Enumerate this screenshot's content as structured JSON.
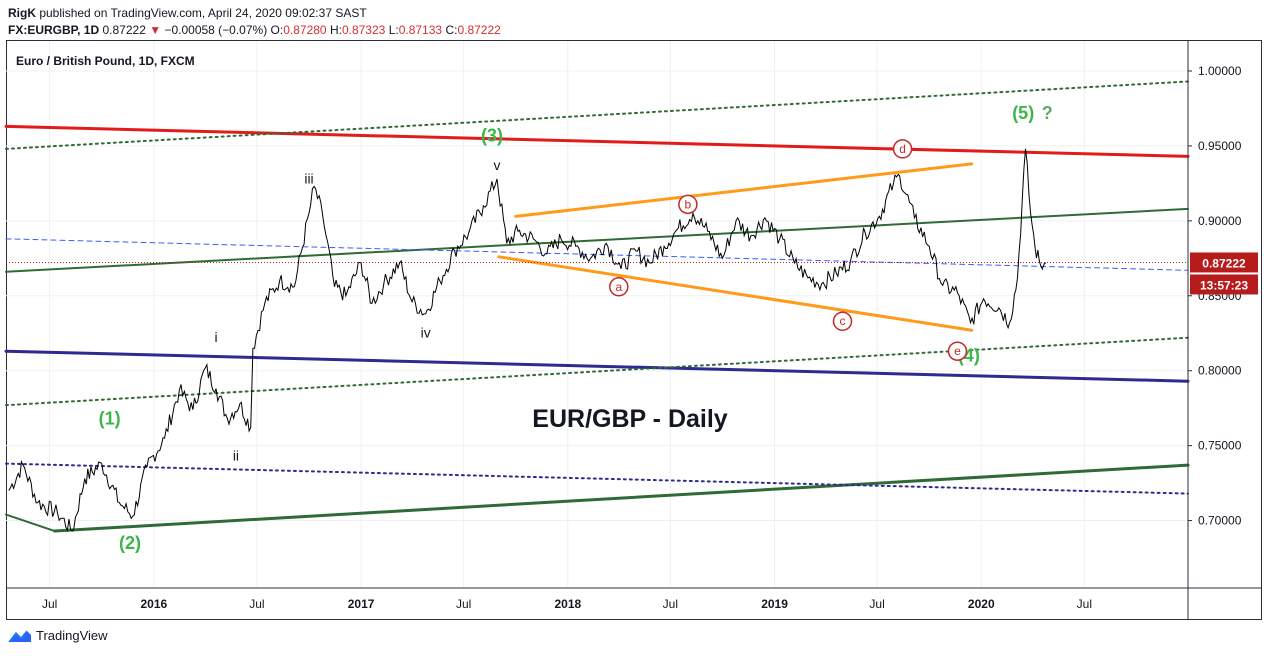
{
  "header": {
    "publisher": "RigK",
    "published_text": " published on TradingView.com, April 24, 2020 09:02:37 SAST",
    "symbol": "FX:EURGBP, 1D",
    "price": "0.87222",
    "change_arrow": "▼",
    "change": "−0.00058 (−0.07%)",
    "o_label": "O:",
    "o_value": "0.87280",
    "h_label": "H:",
    "h_value": "0.87323",
    "l_label": "L:",
    "l_value": "0.87133",
    "c_label": "C:",
    "c_value": "0.87222"
  },
  "footer": {
    "brand": "TradingView"
  },
  "colors": {
    "price_line": "#000000",
    "red_channel": "#e31b1b",
    "orange_triangle": "#ff9a1a",
    "navy_line": "#2e2a8f",
    "green_line": "#2e6b36",
    "wave_green": "#3cb54a",
    "wave_red": "#c62828",
    "price_label_bg": "#b71c1c"
  },
  "chart_data": {
    "type": "line",
    "title": "Euro / British Pound, 1D, FXCM",
    "annotation_title": "EUR/GBP - Daily",
    "ylim": [
      0.655,
      1.02
    ],
    "y_ticks": [
      "0.70000",
      "0.75000",
      "0.80000",
      "0.85000",
      "0.90000",
      "0.95000",
      "1.00000"
    ],
    "y_tick_values": [
      0.7,
      0.75,
      0.8,
      0.85,
      0.9,
      0.95,
      1.0
    ],
    "x_ticks": [
      "Jul",
      "2016",
      "Jul",
      "2017",
      "Jul",
      "2018",
      "Jul",
      "2019",
      "Jul",
      "2020",
      "Jul"
    ],
    "x_tick_dates": [
      "2015-07-01",
      "2016-01-01",
      "2016-07-01",
      "2017-01-01",
      "2017-07-01",
      "2018-01-01",
      "2018-07-01",
      "2019-01-01",
      "2019-07-01",
      "2020-01-01",
      "2020-07-01"
    ],
    "x_range": [
      "2015-04-15",
      "2020-12-31"
    ],
    "current_price_label": "0.87222",
    "countdown_label": "13:57:23",
    "series": [
      {
        "name": "EURGBP",
        "x": [
          "2015-04-20",
          "2015-05-15",
          "2015-06-10",
          "2015-07-15",
          "2015-08-10",
          "2015-09-01",
          "2015-10-01",
          "2015-11-01",
          "2015-11-25",
          "2015-12-20",
          "2016-01-20",
          "2016-02-15",
          "2016-03-10",
          "2016-04-01",
          "2016-04-20",
          "2016-05-10",
          "2016-06-01",
          "2016-06-20",
          "2016-06-24",
          "2016-07-15",
          "2016-08-10",
          "2016-09-05",
          "2016-10-01",
          "2016-10-10",
          "2016-10-25",
          "2016-11-15",
          "2016-12-05",
          "2017-01-01",
          "2017-01-20",
          "2017-02-10",
          "2017-03-10",
          "2017-04-01",
          "2017-04-25",
          "2017-05-20",
          "2017-06-15",
          "2017-07-10",
          "2017-08-05",
          "2017-08-29",
          "2017-09-15",
          "2017-10-05",
          "2017-11-01",
          "2017-11-25",
          "2017-12-20",
          "2018-01-15",
          "2018-02-10",
          "2018-03-10",
          "2018-04-05",
          "2018-05-01",
          "2018-05-25",
          "2018-06-20",
          "2018-07-15",
          "2018-08-10",
          "2018-09-05",
          "2018-10-01",
          "2018-10-25",
          "2018-11-20",
          "2018-12-15",
          "2019-01-10",
          "2019-02-05",
          "2019-03-01",
          "2019-03-25",
          "2019-04-20",
          "2019-05-15",
          "2019-06-10",
          "2019-07-05",
          "2019-07-30",
          "2019-08-10",
          "2019-09-05",
          "2019-10-01",
          "2019-10-25",
          "2019-11-20",
          "2019-12-13",
          "2020-01-05",
          "2020-02-01",
          "2020-02-20",
          "2020-03-05",
          "2020-03-19",
          "2020-03-28",
          "2020-04-05",
          "2020-04-15",
          "2020-04-24"
        ],
        "values": [
          0.72,
          0.737,
          0.712,
          0.705,
          0.693,
          0.728,
          0.738,
          0.712,
          0.703,
          0.736,
          0.755,
          0.787,
          0.774,
          0.802,
          0.788,
          0.768,
          0.778,
          0.762,
          0.815,
          0.845,
          0.86,
          0.856,
          0.905,
          0.923,
          0.904,
          0.856,
          0.85,
          0.872,
          0.845,
          0.858,
          0.872,
          0.846,
          0.838,
          0.86,
          0.88,
          0.892,
          0.91,
          0.928,
          0.885,
          0.893,
          0.888,
          0.878,
          0.888,
          0.883,
          0.875,
          0.885,
          0.868,
          0.88,
          0.872,
          0.883,
          0.895,
          0.905,
          0.893,
          0.875,
          0.9,
          0.89,
          0.902,
          0.888,
          0.872,
          0.862,
          0.858,
          0.865,
          0.873,
          0.892,
          0.903,
          0.925,
          0.93,
          0.902,
          0.883,
          0.857,
          0.852,
          0.832,
          0.848,
          0.842,
          0.832,
          0.862,
          0.948,
          0.905,
          0.882,
          0.87,
          0.872
        ]
      }
    ],
    "trendlines": [
      {
        "role": "upper-channel-red",
        "from": [
          "2015-04-15",
          0.963
        ],
        "to": [
          "2020-12-31",
          0.943
        ]
      },
      {
        "role": "lower-channel-navy",
        "from": [
          "2015-04-15",
          0.813
        ],
        "to": [
          "2020-12-31",
          0.793
        ]
      },
      {
        "role": "mid-green",
        "from": [
          "2015-04-15",
          0.866
        ],
        "to": [
          "2020-12-31",
          0.908
        ]
      },
      {
        "role": "base-green",
        "from": [
          "2015-07-10",
          0.693
        ],
        "to": [
          "2020-12-31",
          0.737
        ]
      },
      {
        "role": "base-green-left",
        "from": [
          "2015-04-15",
          0.704
        ],
        "to": [
          "2015-07-10",
          0.693
        ]
      },
      {
        "role": "upper-dotted-green",
        "from": [
          "2015-04-15",
          0.948
        ],
        "to": [
          "2020-12-31",
          0.993
        ]
      },
      {
        "role": "lower-dotted-green",
        "from": [
          "2015-04-15",
          0.777
        ],
        "to": [
          "2020-12-31",
          0.822
        ]
      },
      {
        "role": "dotted-navy",
        "from": [
          "2015-04-15",
          0.738
        ],
        "to": [
          "2020-12-31",
          0.718
        ]
      },
      {
        "role": "dashed-blue",
        "from": [
          "2015-04-15",
          0.888
        ],
        "to": [
          "2020-12-31",
          0.867
        ]
      },
      {
        "role": "triangle-upper-orange",
        "from": [
          "2017-10-01",
          0.903
        ],
        "to": [
          "2019-12-15",
          0.938
        ]
      },
      {
        "role": "triangle-lower-orange",
        "from": [
          "2017-09-01",
          0.876
        ],
        "to": [
          "2019-12-15",
          0.827
        ]
      }
    ],
    "wave_labels_green": [
      {
        "text": "(1)",
        "x": "2015-10-15",
        "y": 0.764
      },
      {
        "text": "(2)",
        "x": "2015-11-20",
        "y": 0.681
      },
      {
        "text": "(3)",
        "x": "2017-08-20",
        "y": 0.953
      },
      {
        "text": "(4)",
        "x": "2019-12-10",
        "y": 0.806
      }
    ],
    "wave5_label": {
      "text": "(5)",
      "suffix": "?",
      "x": "2020-03-15",
      "y": 0.968
    },
    "wave_labels_roman": [
      {
        "text": "i",
        "x": "2016-04-20",
        "y": 0.819
      },
      {
        "text": "ii",
        "x": "2016-05-25",
        "y": 0.74
      },
      {
        "text": "iii",
        "x": "2016-10-01",
        "y": 0.925
      },
      {
        "text": "iv",
        "x": "2017-04-25",
        "y": 0.822
      },
      {
        "text": "v",
        "x": "2017-08-29",
        "y": 0.934
      }
    ],
    "wave_labels_circled": [
      {
        "text": "a",
        "x": "2018-04-01",
        "y": 0.856
      },
      {
        "text": "b",
        "x": "2018-08-01",
        "y": 0.911
      },
      {
        "text": "c",
        "x": "2019-05-01",
        "y": 0.833
      },
      {
        "text": "d",
        "x": "2019-08-15",
        "y": 0.948
      },
      {
        "text": "e",
        "x": "2019-11-20",
        "y": 0.813
      }
    ],
    "grid": true
  }
}
